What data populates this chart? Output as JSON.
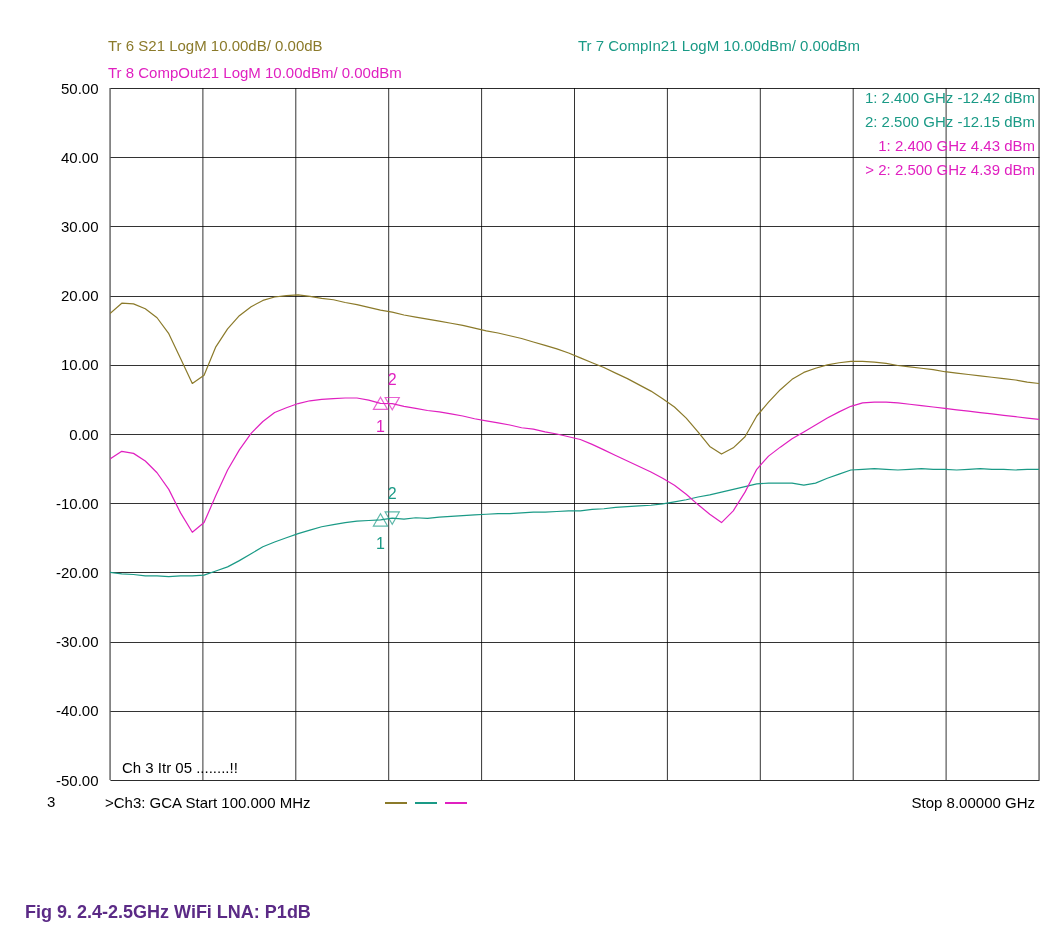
{
  "chart_data": {
    "type": "line",
    "title": "Fig 9.     2.4-2.5GHz WiFi LNA: P1dB",
    "categories": [
      null,
      null,
      null,
      null,
      null,
      null,
      null,
      null,
      null,
      null,
      null,
      null,
      null,
      null,
      null,
      null,
      null,
      null,
      null,
      null,
      null,
      null,
      null,
      null,
      null,
      null,
      null,
      null,
      null,
      null,
      null,
      null,
      null,
      null,
      null,
      null,
      null,
      null,
      null,
      null,
      null,
      null,
      null,
      null,
      null,
      null,
      null,
      null,
      null,
      null,
      null,
      null,
      null,
      null,
      null,
      null,
      null,
      null,
      null,
      null,
      null,
      null,
      null,
      null,
      null,
      null,
      null,
      null,
      null,
      null,
      null,
      null,
      null,
      null,
      null,
      null,
      null,
      null,
      null,
      null
    ],
    "ylim": [
      -50,
      50
    ],
    "yticks": [
      {
        "value": -50,
        "label": "-50.00"
      },
      {
        "value": -40,
        "label": "-40.00"
      },
      {
        "value": -30,
        "label": "-30.00"
      },
      {
        "value": -20,
        "label": "-20.00"
      },
      {
        "value": -10,
        "label": "-10.00"
      },
      {
        "value": 0,
        "label": "0.00"
      },
      {
        "value": 10,
        "label": "10.00"
      },
      {
        "value": 20,
        "label": "20.00"
      },
      {
        "value": 30,
        "label": "30.00"
      },
      {
        "value": 40,
        "label": "40.00"
      },
      {
        "value": 50,
        "label": "50.00"
      }
    ],
    "tick_labels": "y",
    "grid": true,
    "series": [
      {
        "name": "Tr 6  S21 LogM 10.00dB/  0.00dB",
        "color": "#8b7a2a",
        "values": [
          17.4,
          18.9,
          18.8,
          18.1,
          16.8,
          14.5,
          10.9,
          7.3,
          8.5,
          12.6,
          15.2,
          17.1,
          18.4,
          19.3,
          19.8,
          20.0,
          20.1,
          19.9,
          19.6,
          19.4,
          19.0,
          18.7,
          18.3,
          17.9,
          17.6,
          17.2,
          16.9,
          16.6,
          16.3,
          16.0,
          15.7,
          15.3,
          14.9,
          14.6,
          14.2,
          13.8,
          13.3,
          12.8,
          12.3,
          11.7,
          11.0,
          10.3,
          9.6,
          8.8,
          8.0,
          7.1,
          6.2,
          5.1,
          3.9,
          2.3,
          0.3,
          -1.8,
          -2.9,
          -2.0,
          -0.4,
          2.6,
          4.6,
          6.4,
          7.9,
          8.9,
          9.5,
          10.0,
          10.3,
          10.5,
          10.5,
          10.4,
          10.2,
          9.9,
          9.7,
          9.5,
          9.3,
          9.0,
          8.8,
          8.6,
          8.4,
          8.2,
          8.0,
          7.8,
          7.5,
          7.3
        ]
      },
      {
        "name": "Tr 7  CompIn21 LogM 10.00dBm/  0.00dBm",
        "color": "#1a9a86",
        "values": [
          -20.0,
          -20.2,
          -20.3,
          -20.5,
          -20.5,
          -20.6,
          -20.5,
          -20.5,
          -20.4,
          -19.8,
          -19.2,
          -18.3,
          -17.3,
          -16.3,
          -15.6,
          -15.0,
          -14.4,
          -13.9,
          -13.4,
          -13.1,
          -12.8,
          -12.6,
          -12.5,
          -12.42,
          -12.15,
          -12.3,
          -12.1,
          -12.2,
          -12.0,
          -11.9,
          -11.8,
          -11.7,
          -11.6,
          -11.5,
          -11.5,
          -11.4,
          -11.3,
          -11.3,
          -11.2,
          -11.1,
          -11.1,
          -10.9,
          -10.8,
          -10.6,
          -10.5,
          -10.4,
          -10.3,
          -10.1,
          -9.8,
          -9.5,
          -9.1,
          -8.8,
          -8.4,
          -8.0,
          -7.6,
          -7.2,
          -7.1,
          -7.1,
          -7.1,
          -7.4,
          -7.1,
          -6.4,
          -5.8,
          -5.2,
          -5.1,
          -5.0,
          -5.1,
          -5.2,
          -5.1,
          -5.0,
          -5.1,
          -5.1,
          -5.2,
          -5.1,
          -5.0,
          -5.1,
          -5.1,
          -5.2,
          -5.1,
          -5.1
        ]
      },
      {
        "name": "Tr 8  CompOut21 LogM 10.00dBm/  0.00dBm",
        "color": "#e020c0",
        "values": [
          -3.6,
          -2.5,
          -2.8,
          -3.9,
          -5.6,
          -8.0,
          -11.4,
          -14.2,
          -12.8,
          -8.9,
          -5.2,
          -2.3,
          0.1,
          1.8,
          3.1,
          3.8,
          4.4,
          4.8,
          5.0,
          5.1,
          5.2,
          5.2,
          4.9,
          4.43,
          4.39,
          4.0,
          3.7,
          3.4,
          3.2,
          2.9,
          2.6,
          2.2,
          1.9,
          1.6,
          1.3,
          0.9,
          0.7,
          0.3,
          0.0,
          -0.4,
          -0.8,
          -1.5,
          -2.3,
          -3.1,
          -3.9,
          -4.7,
          -5.5,
          -6.4,
          -7.4,
          -8.7,
          -10.2,
          -11.6,
          -12.8,
          -11.1,
          -8.4,
          -5.1,
          -3.2,
          -1.9,
          -0.7,
          0.3,
          1.3,
          2.3,
          3.2,
          4.0,
          4.5,
          4.6,
          4.6,
          4.5,
          4.3,
          4.1,
          3.9,
          3.7,
          3.5,
          3.3,
          3.1,
          2.9,
          2.7,
          2.5,
          2.3,
          2.1
        ]
      },
      {
        "type": "scatter",
        "marker": "triangle",
        "color": "#e020c0",
        "values": [
          null,
          null,
          null,
          null,
          null,
          null,
          null,
          null,
          null,
          null,
          null,
          null,
          null,
          null,
          null,
          null,
          null,
          null,
          null,
          null,
          null,
          null,
          null,
          4.43,
          null,
          null,
          null,
          null,
          null,
          null,
          null,
          null,
          null,
          null,
          null,
          null,
          null,
          null,
          null,
          null,
          null,
          null,
          null,
          null,
          null,
          null,
          null,
          null,
          null,
          null,
          null,
          null,
          null,
          null,
          null,
          null,
          null,
          null,
          null,
          null,
          null,
          null,
          null,
          null,
          null,
          null,
          null,
          null,
          null,
          null,
          null,
          null,
          null,
          null,
          null,
          null,
          null,
          null,
          null,
          null
        ]
      },
      {
        "type": "scatter",
        "marker": "triangle",
        "color": "#e020c0",
        "values": [
          null,
          null,
          null,
          null,
          null,
          null,
          null,
          null,
          null,
          null,
          null,
          null,
          null,
          null,
          null,
          null,
          null,
          null,
          null,
          null,
          null,
          null,
          null,
          null,
          4.39,
          null,
          null,
          null,
          null,
          null,
          null,
          null,
          null,
          null,
          null,
          null,
          null,
          null,
          null,
          null,
          null,
          null,
          null,
          null,
          null,
          null,
          null,
          null,
          null,
          null,
          null,
          null,
          null,
          null,
          null,
          null,
          null,
          null,
          null,
          null,
          null,
          null,
          null,
          null,
          null,
          null,
          null,
          null,
          null,
          null,
          null,
          null,
          null,
          null,
          null,
          null,
          null,
          null,
          null,
          null
        ]
      },
      {
        "type": "scatter",
        "marker": "triangle",
        "color": "#1a9a86",
        "values": [
          null,
          null,
          null,
          null,
          null,
          null,
          null,
          null,
          null,
          null,
          null,
          null,
          null,
          null,
          null,
          null,
          null,
          null,
          null,
          null,
          null,
          null,
          null,
          -12.42,
          null,
          null,
          null,
          null,
          null,
          null,
          null,
          null,
          null,
          null,
          null,
          null,
          null,
          null,
          null,
          null,
          null,
          null,
          null,
          null,
          null,
          null,
          null,
          null,
          null,
          null,
          null,
          null,
          null,
          null,
          null,
          null,
          null,
          null,
          null,
          null,
          null,
          null,
          null,
          null,
          null,
          null,
          null,
          null,
          null,
          null,
          null,
          null,
          null,
          null,
          null,
          null,
          null,
          null,
          null,
          null
        ]
      },
      {
        "type": "scatter",
        "marker": "triangle",
        "color": "#1a9a86",
        "values": [
          null,
          null,
          null,
          null,
          null,
          null,
          null,
          null,
          null,
          null,
          null,
          null,
          null,
          null,
          null,
          null,
          null,
          null,
          null,
          null,
          null,
          null,
          null,
          null,
          -12.15,
          null,
          null,
          null,
          null,
          null,
          null,
          null,
          null,
          null,
          null,
          null,
          null,
          null,
          null,
          null,
          null,
          null,
          null,
          null,
          null,
          null,
          null,
          null,
          null,
          null,
          null,
          null,
          null,
          null,
          null,
          null,
          null,
          null,
          null,
          null,
          null,
          null,
          null,
          null,
          null,
          null,
          null,
          null,
          null,
          null,
          null,
          null,
          null,
          null,
          null,
          null,
          null,
          null,
          null,
          null
        ]
      }
    ],
    "annotations": [
      "1:      2.400 GHz     -12.42 dBm",
      "2:      2.500 GHz     -12.15 dBm",
      "1:      2.400 GHz        4.43 dBm",
      "> 2:      2.500 GHz        4.39 dBm",
      "Ch 3  Itr 05 ........!!",
      "3",
      ">Ch3: GCA Start  100.000 MHz",
      "Stop  8.00000 GHz",
      "1",
      "2",
      "1",
      "2"
    ]
  }
}
